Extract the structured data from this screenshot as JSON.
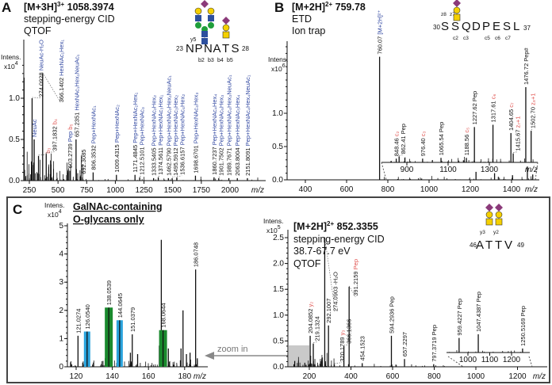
{
  "panels": {
    "A": {
      "letter": "A",
      "precursor": "[M+3H]",
      "charge": "3+",
      "mass": "1058.3974",
      "method": "stepping-energy CID",
      "instrument": "QTOF",
      "peptide": {
        "start": "23",
        "end": "28",
        "sequence": [
          "N",
          "P",
          "N",
          "A",
          "T",
          "S"
        ],
        "ions": [
          "y5",
          "b2",
          "b3",
          "b4",
          "b5"
        ]
      }
    },
    "B": {
      "letter": "B",
      "precursor": "[M+2H]",
      "charge": "2+",
      "mass": "759.78",
      "method": "ETD",
      "instrument": "Ion trap",
      "peptide": {
        "start": "30",
        "end": "37",
        "sequence": [
          "S",
          "S",
          "Q",
          "D",
          "P",
          "E",
          "S",
          "L"
        ],
        "ions": [
          "z8",
          "z7",
          "c2",
          "c3",
          "c5",
          "c6",
          "c7"
        ]
      }
    },
    "C": {
      "letter": "C",
      "precursor": "[M+2H]",
      "charge": "2+",
      "mass": "852.3355",
      "method": "stepping-energy CID",
      "energy": "38.7-67.7 eV",
      "instrument": "QTOF",
      "inset_title_1": "GalNAc-containing",
      "inset_title_2": "O-glycans only",
      "zoom_label": "zoom in",
      "peptide": {
        "start": "46",
        "end": "49",
        "sequence": [
          "A",
          "T",
          "T",
          "V"
        ],
        "ions": [
          "y3",
          "y2"
        ]
      }
    }
  },
  "colors": {
    "annotation_blue": "#2f46a0",
    "ion_red": "#e0524f",
    "galnac_highlight_blue": "#2aa3dc",
    "galnac_highlight_green": "#1a8a2e",
    "gal_yellow": "#f5d000",
    "neuac_purple": "#8b3a7a",
    "glcnac_blue": "#2c4f9e",
    "man_green": "#1f9e3a"
  },
  "chart_data": [
    {
      "id": "A",
      "type": "bar",
      "subtype": "mass-spectrum",
      "xlabel": "m/z",
      "ylabel": "Intens.",
      "yscale": "x10^4",
      "xlim": [
        200,
        2280
      ],
      "ylim": [
        0,
        1.5
      ],
      "xticks": [
        250,
        500,
        750,
        1000,
        1250,
        1500,
        1750,
        2000
      ],
      "yticks": [
        "0.0",
        "0.5",
        "1.0"
      ],
      "peaks": [
        {
          "mz": 204.09,
          "intensity": 1.25,
          "label": ""
        },
        {
          "mz": 274.0928,
          "intensity": 1.0,
          "label": "274.0928",
          "annotation": "NeuAc-H₂O"
        },
        {
          "mz": 292.1,
          "intensity": 0.5,
          "label": "",
          "annotation": "NeuAc"
        },
        {
          "mz": 330.0,
          "intensity": 0.3,
          "label": "",
          "ion": "b₃"
        },
        {
          "mz": 366.1402,
          "intensity": 1.3,
          "label": "366.1402",
          "annotation": "HexNAc₁Hex₁"
        },
        {
          "mz": 397.1832,
          "intensity": 0.33,
          "label": "397.1832",
          "ion": "b₄"
        },
        {
          "mz": 603.2739,
          "intensity": 0.12,
          "label": "603.2739",
          "annotation": "Pep",
          "ion": "b₅"
        },
        {
          "mz": 657.2351,
          "intensity": 0.5,
          "label": "657.2351",
          "annotation": "HexNAc₁Hex₁NeuAc₁"
        },
        {
          "mz": 692.3085,
          "intensity": 0.05,
          "label": "692.3085"
        },
        {
          "mz": 806.3532,
          "intensity": 0.1,
          "label": "806.3532",
          "annotation": "Pep+HexNAc₁"
        },
        {
          "mz": 1009.4315,
          "intensity": 0.07,
          "label": "1009.4315",
          "annotation": "Pep+HexNAc₂"
        },
        {
          "mz": 1171.4845,
          "intensity": 0.07,
          "label": "1171.4845",
          "annotation": "Pep+HexNAc₂Hex₁"
        },
        {
          "mz": 1212.5101,
          "intensity": 0.04,
          "label": "1212.5101",
          "annotation": "Pep+HexNAc₃"
        },
        {
          "mz": 1333.5405,
          "intensity": 0.03,
          "label": "1333.5405",
          "annotation": "Pep+HexNAc₂Hex₂"
        },
        {
          "mz": 1374.5611,
          "intensity": 0.04,
          "label": "1374.5611",
          "annotation": "Pep+HexNAc₃Hex₁"
        },
        {
          "mz": 1462.579,
          "intensity": 0.03,
          "label": "1462.5790",
          "annotation": "Pep+HexNAc₂Hex₁NeuAc₁"
        },
        {
          "mz": 1495.5912,
          "intensity": 0.03,
          "label": "1495.5912",
          "annotation": "Pep+HexNAc₃Hex₂"
        },
        {
          "mz": 1536.6157,
          "intensity": 0.04,
          "label": "1536.6157",
          "annotation": "Pep+HexNAc₄Hex₂"
        },
        {
          "mz": 1698.6701,
          "intensity": 0.06,
          "label": "1698.6701",
          "annotation": "Pep+HexNAc₄Hex₃"
        },
        {
          "mz": 1860.7237,
          "intensity": 0.04,
          "label": "1860.7237",
          "annotation": "Pep+HexNAc₄Hex₄"
        },
        {
          "mz": 1901.7502,
          "intensity": 0.03,
          "label": "1901.7502",
          "annotation": "Pep+HexNAc₅Hex₃"
        },
        {
          "mz": 1989.7671,
          "intensity": 0.03,
          "label": "1989.7671",
          "annotation": "Pep+HexNAc₄Hex₃NeuAc₁"
        },
        {
          "mz": 2063.8004,
          "intensity": 0.03,
          "label": "2063.8004",
          "annotation": "Pep+HexNAc₅Hex₄"
        },
        {
          "mz": 2151.8091,
          "intensity": 0.03,
          "label": "2151.8091",
          "annotation": "Pep+HexNAc₄Hex₄NeuAc₁"
        }
      ]
    },
    {
      "id": "B",
      "type": "bar",
      "subtype": "mass-spectrum",
      "xlabel": "m/z",
      "ylabel": "Intens.",
      "yscale": "x10^6",
      "xlim": [
        320,
        1530
      ],
      "ylim": [
        0,
        2.0
      ],
      "xticks": [
        400,
        600,
        800,
        1000,
        1200,
        1400
      ],
      "yticks": [
        "0.0",
        "0.5",
        "1.0"
      ],
      "peaks": [
        {
          "mz": 760.07,
          "intensity": 1.85,
          "label": "760.07",
          "annotation": "[M+2H]²⁺"
        },
        {
          "mz": 1227.62,
          "intensity": 0.12,
          "label": ""
        },
        {
          "mz": 1317.61,
          "intensity": 0.1,
          "label": ""
        },
        {
          "mz": 1404.65,
          "intensity": 0.07,
          "label": ""
        },
        {
          "mz": 1476.72,
          "intensity": 0.2,
          "label": ""
        },
        {
          "mz": 1502.7,
          "intensity": 0.08,
          "label": ""
        }
      ],
      "inset": {
        "xticks": [
          900,
          1100,
          1300
        ],
        "xlabel": "m/z",
        "peaks": [
          {
            "mz": 848.46,
            "intensity": 0.05,
            "label": "848.46",
            "ion": "c₂"
          },
          {
            "mz": 862.41,
            "intensity": 0.08,
            "label": "862.41",
            "annotation": "Pep"
          },
          {
            "mz": 976.4,
            "intensity": 0.05,
            "label": "976.40",
            "ion": "c₃"
          },
          {
            "mz": 1065.54,
            "intensity": 0.06,
            "label": "1065.54",
            "annotation": "Pep"
          },
          {
            "mz": 1188.56,
            "intensity": 0.06,
            "label": "1188.56",
            "ion": "c₅"
          },
          {
            "mz": 1227.62,
            "intensity": 0.47,
            "label": "1227.62",
            "annotation": "Pep"
          },
          {
            "mz": 1317.61,
            "intensity": 0.5,
            "label": "1317.61",
            "ion": "c₆"
          },
          {
            "mz": 1404.65,
            "intensity": 0.39,
            "label": "1404.65",
            "ion": "c₇"
          },
          {
            "mz": 1415.67,
            "intensity": 0.12,
            "label": "1415.67",
            "ion": "z₇+1"
          },
          {
            "mz": 1476.72,
            "intensity": 1.0,
            "label": "1476.72",
            "annotation": "Pep#"
          },
          {
            "mz": 1502.7,
            "intensity": 0.42,
            "label": "1502.70",
            "ion": "z₈+1"
          }
        ]
      }
    },
    {
      "id": "C-left",
      "type": "bar",
      "subtype": "mass-spectrum",
      "xlabel": "m/z",
      "ylabel": "Intens.",
      "yscale": "x10^4",
      "xlim": [
        115,
        190
      ],
      "ylim": [
        0,
        5
      ],
      "xticks": [
        120,
        140,
        160,
        180
      ],
      "yticks": [
        "0",
        "1",
        "2",
        "3",
        "4",
        "5"
      ],
      "peaks": [
        {
          "mz": 121.0274,
          "intensity": 1.1,
          "label": "121.0274"
        },
        {
          "mz": 126.054,
          "intensity": 1.25,
          "label": "126.0540",
          "highlight": "blue"
        },
        {
          "mz": 138.0539,
          "intensity": 2.1,
          "label": "138.0539",
          "highlight": "green"
        },
        {
          "mz": 144.0645,
          "intensity": 1.65,
          "label": "144.0645",
          "highlight": "blue"
        },
        {
          "mz": 151.0379,
          "intensity": 1.15,
          "label": "151.0379"
        },
        {
          "mz": 150.0,
          "intensity": 0.5,
          "label": ""
        },
        {
          "mz": 154.0,
          "intensity": 0.45,
          "label": ""
        },
        {
          "mz": 166.0,
          "intensity": 0.75,
          "label": ""
        },
        {
          "mz": 167.1,
          "intensity": 4.5,
          "label": ""
        },
        {
          "mz": 168.0644,
          "intensity": 1.3,
          "label": "168.0644",
          "highlight": "green"
        },
        {
          "mz": 171.0,
          "intensity": 0.65,
          "label": ""
        },
        {
          "mz": 178.0,
          "intensity": 0.65,
          "label": ""
        },
        {
          "mz": 179.1,
          "intensity": 2.0,
          "label": ""
        },
        {
          "mz": 181.0,
          "intensity": 0.45,
          "label": ""
        },
        {
          "mz": 183.0,
          "intensity": 0.5,
          "label": ""
        },
        {
          "mz": 186.0748,
          "intensity": 3.45,
          "label": "186.0748"
        },
        {
          "mz": 187.0,
          "intensity": 0.3,
          "label": ""
        }
      ]
    },
    {
      "id": "C-right",
      "type": "bar",
      "subtype": "mass-spectrum",
      "xlabel": "m/z",
      "ylabel": "Intens.",
      "yscale": "x10^5",
      "xlim": [
        110,
        1280
      ],
      "ylim": [
        0,
        2.6
      ],
      "xticks": [
        200,
        400,
        600,
        800,
        1000,
        1200
      ],
      "yticks": [
        "0.0",
        "0.5",
        "1.0",
        "1.5",
        "2.0",
        "2.5"
      ],
      "peaks": [
        {
          "mz": 204.0852,
          "intensity": 0.6,
          "label": "204.0852",
          "ion": "y₂"
        },
        {
          "mz": 219.1324,
          "intensity": 0.45,
          "label": "219.1324"
        },
        {
          "mz": 274.0903,
          "intensity": 2.5,
          "label": "274.0903",
          "annotation": "-H₂O"
        },
        {
          "mz": 292.1007,
          "intensity": 0.8,
          "label": "292.1007"
        },
        {
          "mz": 320.1789,
          "intensity": 0.05,
          "label": "320.1789",
          "ion": "y₃"
        },
        {
          "mz": 366.1366,
          "intensity": 0.4,
          "label": "366.1366"
        },
        {
          "mz": 391.2159,
          "intensity": 1.55,
          "label": "391.2159",
          "ion": "Pep"
        },
        {
          "mz": 454.1523,
          "intensity": 0.07,
          "label": "454.1523"
        },
        {
          "mz": 594.2936,
          "intensity": 0.6,
          "label": "594.2936",
          "annotation": "Pep"
        },
        {
          "mz": 657.2297,
          "intensity": 0.15,
          "label": "657.2297"
        },
        {
          "mz": 797.3719,
          "intensity": 0.05,
          "label": "797.3719",
          "annotation": "Pep"
        }
      ],
      "inset": {
        "xticks": [
          1000,
          1100,
          1200
        ],
        "peaks": [
          {
            "mz": 959.4227,
            "intensity": 0.8,
            "label": "959.4227",
            "annotation": "Pep"
          },
          {
            "mz": 1047.4387,
            "intensity": 1.0,
            "label": "1047.4387",
            "annotation": "Pep"
          },
          {
            "mz": 1250.5169,
            "intensity": 0.22,
            "label": "1250.5169",
            "annotation": "Pep"
          }
        ]
      }
    }
  ]
}
